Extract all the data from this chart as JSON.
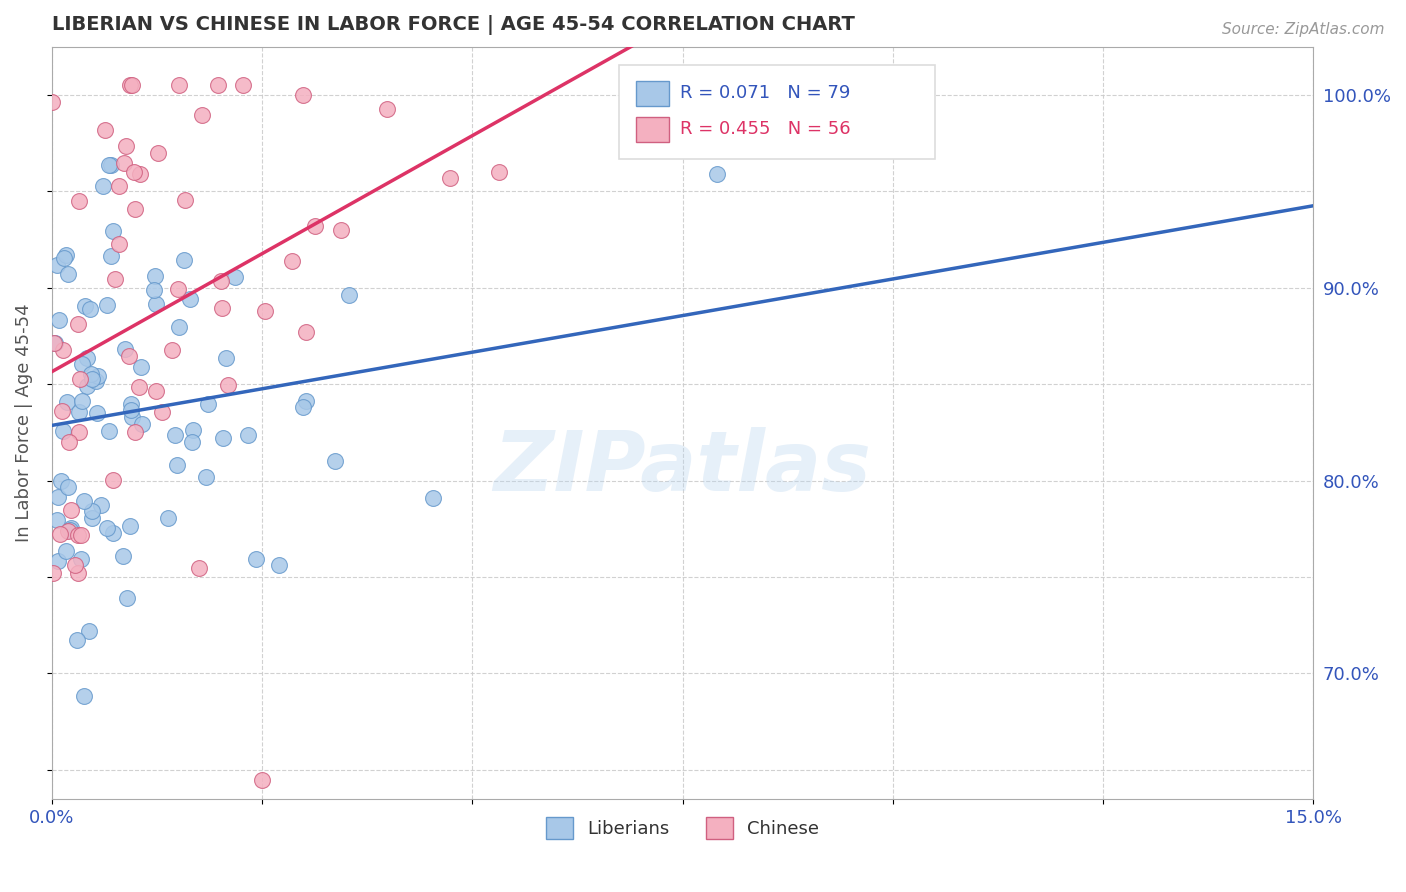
{
  "title": "LIBERIAN VS CHINESE IN LABOR FORCE | AGE 45-54 CORRELATION CHART",
  "source": "Source: ZipAtlas.com",
  "ylabel": "In Labor Force | Age 45-54",
  "xlim": [
    0.0,
    0.15
  ],
  "ylim": [
    0.635,
    1.025
  ],
  "liberian_color": "#a8c8e8",
  "liberian_edge": "#6699cc",
  "chinese_color": "#f4b0c0",
  "chinese_edge": "#d06080",
  "liberian_line_color": "#3366bb",
  "chinese_line_color": "#dd3366",
  "watermark": "ZIPatlas",
  "liberian_R": 0.071,
  "liberian_N": 79,
  "chinese_R": 0.455,
  "chinese_N": 56,
  "ytick_positions": [
    0.65,
    0.7,
    0.75,
    0.8,
    0.85,
    0.9,
    0.95,
    1.0
  ],
  "ytick_labels": [
    "",
    "70.0%",
    "",
    "80.0%",
    "",
    "90.0%",
    "",
    "100.0%"
  ],
  "xtick_positions": [
    0.0,
    0.025,
    0.05,
    0.075,
    0.1,
    0.125,
    0.15
  ],
  "xtick_labels": [
    "0.0%",
    "",
    "",
    "",
    "",
    "",
    "15.0%"
  ],
  "grid_color": "#cccccc",
  "tick_label_color": "#3355bb",
  "axis_label_color": "#555555",
  "title_color": "#333333",
  "source_color": "#999999"
}
